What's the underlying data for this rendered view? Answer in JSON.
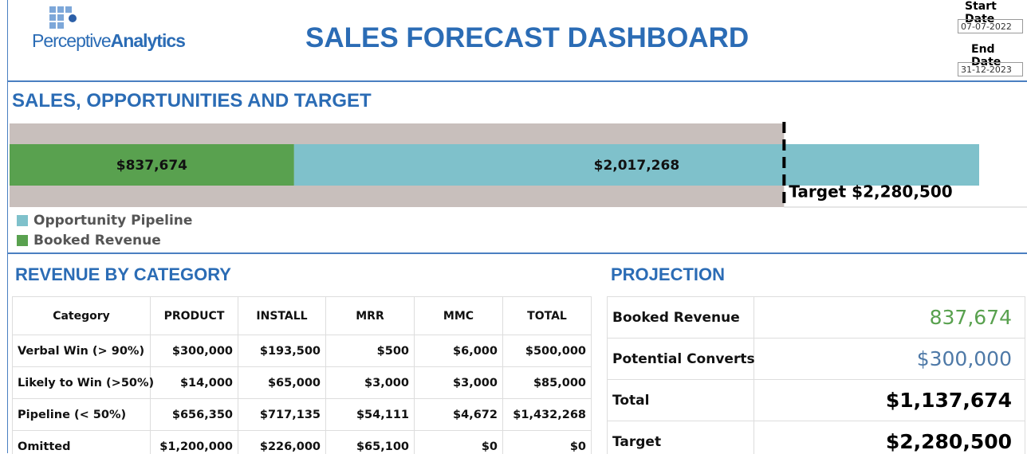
{
  "header": {
    "logo_text_1": "Perceptive",
    "logo_text_2": "Analytics",
    "title": "SALES FORECAST DASHBOARD",
    "start_date_label": "Start Date",
    "start_date": "07-07-2022",
    "end_date_label": "End Date",
    "end_date": "31-12-2023"
  },
  "chart_data": {
    "type": "bar",
    "title": "SALES, OPPORTUNITIES AND TARGET",
    "orientation": "horizontal",
    "stacked": true,
    "series": [
      {
        "name": "Booked Revenue",
        "color": "#59a14f",
        "values": [
          837674
        ],
        "value_labels": [
          "$837,674"
        ]
      },
      {
        "name": "Opportunity Pipeline",
        "color": "#7fc1cb",
        "values": [
          2017268
        ],
        "value_labels": [
          "$2,017,268"
        ]
      }
    ],
    "target": {
      "value": 2280500,
      "label": "Target $2,280,500"
    },
    "target_band_color": "#c8bfbc"
  },
  "revenue_table": {
    "title": "REVENUE BY CATEGORY",
    "columns": [
      "Category",
      "PRODUCT",
      "INSTALL",
      "MRR",
      "MMC",
      "TOTAL"
    ],
    "rows": [
      [
        "Verbal Win (> 90%)",
        "$300,000",
        "$193,500",
        "$500",
        "$6,000",
        "$500,000"
      ],
      [
        "Likely to Win (>50%)",
        "$14,000",
        "$65,000",
        "$3,000",
        "$3,000",
        "$85,000"
      ],
      [
        "Pipeline (< 50%)",
        "$656,350",
        "$717,135",
        "$54,111",
        "$4,672",
        "$1,432,268"
      ],
      [
        "Omitted",
        "$1,200,000",
        "$226,000",
        "$65,100",
        "$0",
        "$0"
      ]
    ]
  },
  "projection": {
    "title": "PROJECTION",
    "rows": [
      {
        "label": "Booked Revenue",
        "value": "837,674",
        "color": "#59a14f"
      },
      {
        "label": "Potential Converts",
        "value": "$300,000",
        "color": "#4e79a7"
      },
      {
        "label": "Total",
        "value": "$1,137,674",
        "color": "#000000"
      },
      {
        "label": "Target",
        "value": "$2,280,500",
        "color": "#000000"
      }
    ]
  }
}
